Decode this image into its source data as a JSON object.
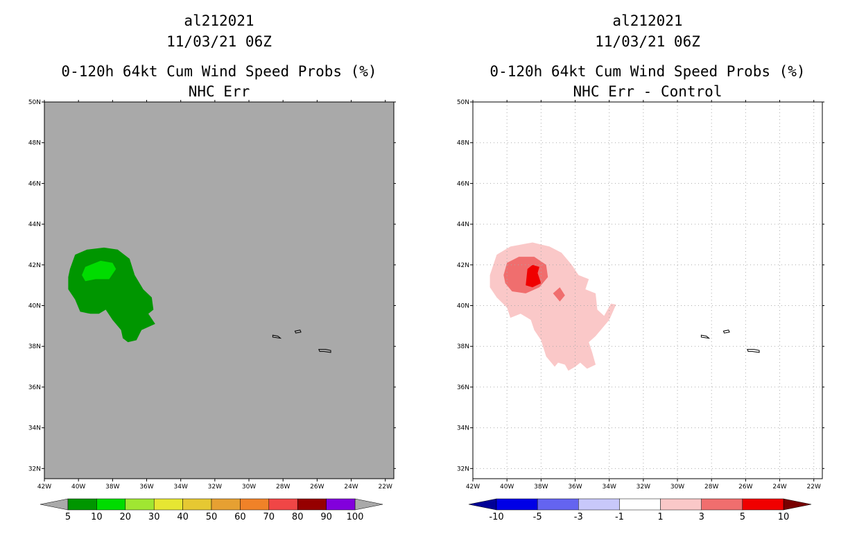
{
  "panels": [
    {
      "storm_id": "al212021",
      "datetime": "11/03/21 06Z",
      "title": "0-120h 64kt Cum Wind Speed Probs (%)",
      "subtitle": "NHC Err"
    },
    {
      "storm_id": "al212021",
      "datetime": "11/03/21 06Z",
      "title": "0-120h 64kt Cum Wind Speed Probs (%)",
      "subtitle": "NHC Err - Control"
    }
  ],
  "chart_data": [
    {
      "type": "map-contour",
      "title": "0-120h 64kt Cum Wind Speed Probs (%)",
      "subtitle": "NHC Err",
      "lon_range": [
        -42,
        -21.5
      ],
      "lat_range": [
        31.5,
        50
      ],
      "xticks": [
        "42W",
        "40W",
        "38W",
        "36W",
        "34W",
        "32W",
        "30W",
        "28W",
        "26W",
        "24W",
        "22W"
      ],
      "yticks": [
        "32N",
        "34N",
        "36N",
        "38N",
        "40N",
        "42N",
        "44N",
        "46N",
        "48N",
        "50N"
      ],
      "grid": false,
      "background_color": "#a9a9a9",
      "colorbar": {
        "labels": [
          "5",
          "10",
          "20",
          "30",
          "40",
          "50",
          "60",
          "70",
          "80",
          "90",
          "100"
        ],
        "colors": [
          "#009600",
          "#00dc00",
          "#a0e632",
          "#e6e632",
          "#e6c832",
          "#e6a032",
          "#f08228",
          "#f04646",
          "#960000",
          "#8200dc"
        ],
        "arrow_color": "#a9a9a9"
      },
      "contours": [
        {
          "level": "5-10",
          "color": "#009600",
          "points": [
            [
              -40.5,
              41.8
            ],
            [
              -40.2,
              42.5
            ],
            [
              -39.5,
              42.75
            ],
            [
              -38.5,
              42.85
            ],
            [
              -37.7,
              42.75
            ],
            [
              -37,
              42.3
            ],
            [
              -36.7,
              41.5
            ],
            [
              -36.2,
              40.8
            ],
            [
              -35.7,
              40.4
            ],
            [
              -35.6,
              39.8
            ],
            [
              -35.9,
              39.6
            ],
            [
              -35.5,
              39.1
            ],
            [
              -36.3,
              38.8
            ],
            [
              -36.6,
              38.3
            ],
            [
              -37.1,
              38.2
            ],
            [
              -37.4,
              38.4
            ],
            [
              -37.5,
              38.8
            ],
            [
              -38,
              39.3
            ],
            [
              -38.4,
              39.8
            ],
            [
              -38.8,
              39.6
            ],
            [
              -39.3,
              39.6
            ],
            [
              -39.9,
              39.7
            ],
            [
              -40.2,
              40.3
            ],
            [
              -40.6,
              40.8
            ],
            [
              -40.6,
              41.4
            ]
          ]
        },
        {
          "level": "10-20",
          "color": "#00dc00",
          "points": [
            [
              -39.8,
              41.5
            ],
            [
              -39.6,
              41.9
            ],
            [
              -38.7,
              42.2
            ],
            [
              -38,
              42.1
            ],
            [
              -37.8,
              41.8
            ],
            [
              -38.2,
              41.3
            ],
            [
              -39,
              41.3
            ],
            [
              -39.6,
              41.2
            ]
          ]
        }
      ],
      "islands": [
        [
          [
            -28.6,
            38.55
          ],
          [
            -28.3,
            38.5
          ],
          [
            -28.15,
            38.4
          ],
          [
            -28.6,
            38.45
          ]
        ],
        [
          [
            -27.3,
            38.75
          ],
          [
            -27.0,
            38.8
          ],
          [
            -26.95,
            38.7
          ],
          [
            -27.25,
            38.65
          ]
        ],
        [
          [
            -25.9,
            37.85
          ],
          [
            -25.5,
            37.85
          ],
          [
            -25.2,
            37.8
          ],
          [
            -25.2,
            37.7
          ],
          [
            -25.6,
            37.75
          ],
          [
            -25.85,
            37.75
          ]
        ]
      ]
    },
    {
      "type": "map-contour",
      "title": "0-120h 64kt Cum Wind Speed Probs (%)",
      "subtitle": "NHC Err - Control",
      "lon_range": [
        -42,
        -21.5
      ],
      "lat_range": [
        31.5,
        50
      ],
      "xticks": [
        "42W",
        "40W",
        "38W",
        "36W",
        "34W",
        "32W",
        "30W",
        "28W",
        "26W",
        "24W",
        "22W"
      ],
      "yticks": [
        "32N",
        "34N",
        "36N",
        "38N",
        "40N",
        "42N",
        "44N",
        "46N",
        "48N",
        "50N"
      ],
      "grid": true,
      "background_color": "#ffffff",
      "colorbar": {
        "labels": [
          "-10",
          "-5",
          "-3",
          "-1",
          "1",
          "3",
          "5",
          "10"
        ],
        "colors": [
          "#0000e6",
          "#6464f0",
          "#c8c8fa",
          "#ffffff",
          "#fac8c8",
          "#f06e6e",
          "#f00000"
        ],
        "arrow_low_color": "#000096",
        "arrow_high_color": "#780000"
      },
      "contours": [
        {
          "level": "1-3",
          "color": "#fac8c8",
          "points": [
            [
              -41,
              41.5
            ],
            [
              -40.6,
              42.5
            ],
            [
              -39.8,
              42.9
            ],
            [
              -38.5,
              43.1
            ],
            [
              -37.5,
              42.9
            ],
            [
              -36.8,
              42.6
            ],
            [
              -36.2,
              42
            ],
            [
              -35.8,
              41.5
            ],
            [
              -35.2,
              41.3
            ],
            [
              -35.4,
              40.8
            ],
            [
              -34.8,
              40.6
            ],
            [
              -34.7,
              39.8
            ],
            [
              -34.3,
              39.5
            ],
            [
              -33.9,
              40.1
            ],
            [
              -33.6,
              40.05
            ],
            [
              -34,
              39.3
            ],
            [
              -34.8,
              38.5
            ],
            [
              -35.2,
              38.2
            ],
            [
              -35.0,
              37.7
            ],
            [
              -34.8,
              37.1
            ],
            [
              -35.3,
              36.9
            ],
            [
              -35.7,
              37.2
            ],
            [
              -36.0,
              37.0
            ],
            [
              -36.4,
              36.8
            ],
            [
              -36.6,
              37.1
            ],
            [
              -37.0,
              37.2
            ],
            [
              -37.2,
              37.0
            ],
            [
              -37.7,
              37.5
            ],
            [
              -38.0,
              38.3
            ],
            [
              -38.4,
              38.8
            ],
            [
              -38.6,
              39.3
            ],
            [
              -39.2,
              39.6
            ],
            [
              -39.8,
              39.4
            ],
            [
              -40.0,
              39.9
            ],
            [
              -40.6,
              40.4
            ],
            [
              -41.0,
              40.9
            ]
          ]
        },
        {
          "level": "3-5",
          "color": "#f06e6e",
          "points": [
            [
              -40.2,
              41.5
            ],
            [
              -40.0,
              42.1
            ],
            [
              -39.3,
              42.4
            ],
            [
              -38.4,
              42.4
            ],
            [
              -37.7,
              42.0
            ],
            [
              -37.6,
              41.4
            ],
            [
              -38.1,
              40.9
            ],
            [
              -38.9,
              40.6
            ],
            [
              -39.7,
              40.7
            ],
            [
              -40.1,
              41.1
            ]
          ]
        },
        {
          "level": "3-5",
          "color": "#f06e6e",
          "points": [
            [
              -37.3,
              40.6
            ],
            [
              -36.9,
              40.9
            ],
            [
              -36.6,
              40.5
            ],
            [
              -36.9,
              40.2
            ]
          ]
        },
        {
          "level": "5-10",
          "color": "#f00000",
          "points": [
            [
              -38.9,
              41.0
            ],
            [
              -38.8,
              41.8
            ],
            [
              -38.5,
              42.0
            ],
            [
              -38.1,
              41.9
            ],
            [
              -38.2,
              41.6
            ],
            [
              -38.0,
              41.1
            ],
            [
              -38.5,
              40.9
            ]
          ]
        }
      ],
      "islands": [
        [
          [
            -28.6,
            38.55
          ],
          [
            -28.3,
            38.5
          ],
          [
            -28.15,
            38.4
          ],
          [
            -28.6,
            38.45
          ]
        ],
        [
          [
            -27.3,
            38.75
          ],
          [
            -27.0,
            38.8
          ],
          [
            -26.95,
            38.7
          ],
          [
            -27.25,
            38.65
          ]
        ],
        [
          [
            -25.9,
            37.85
          ],
          [
            -25.5,
            37.85
          ],
          [
            -25.2,
            37.8
          ],
          [
            -25.2,
            37.7
          ],
          [
            -25.6,
            37.75
          ],
          [
            -25.85,
            37.75
          ]
        ]
      ]
    }
  ]
}
